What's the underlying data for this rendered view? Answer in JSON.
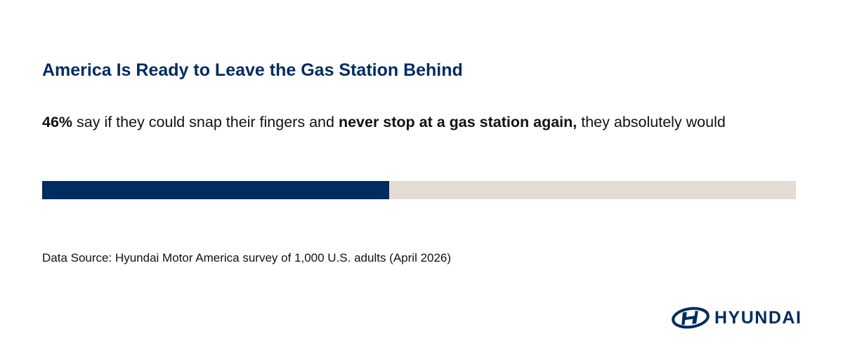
{
  "chart_data": {
    "type": "progress",
    "title": "America Is Ready to Leave the Gas Station Behind",
    "values": [
      46
    ],
    "value_labels": [
      "46%"
    ],
    "statement": [
      "say if they could snap their fingers and",
      "never stop at a gas station again,",
      "they absolutely would"
    ],
    "xlim": [
      0,
      100
    ],
    "color": "#002c5f",
    "track_color": "#e4dcd3",
    "source": "Data Source: Hyundai Motor America survey of 1,000 U.S. adults (April 2026)",
    "logo": "HYUNDAI"
  }
}
